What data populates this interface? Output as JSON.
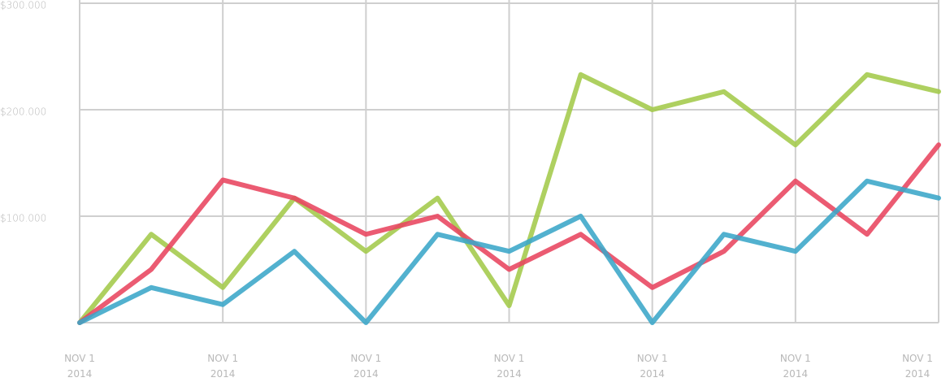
{
  "chart_data": {
    "type": "line",
    "categories": [
      "NOV 1\n2014",
      null,
      "NOV 1\n2014",
      null,
      "NOV 1\n2014",
      null,
      "NOV 1\n2014",
      null,
      "NOV 1\n2014",
      null,
      "NOV 1\n2014",
      null,
      "NOV 1\n2014"
    ],
    "series": [
      {
        "color": "#a3c94a",
        "values": [
          0,
          83000,
          33000,
          117000,
          67000,
          117000,
          16000,
          233000,
          200000,
          217000,
          167000,
          233000,
          217000
        ]
      },
      {
        "color": "#e8445f",
        "values": [
          0,
          50000,
          134000,
          117000,
          83000,
          100000,
          50000,
          83000,
          33000,
          67000,
          133000,
          83000,
          167000
        ]
      },
      {
        "color": "#3aa6c8",
        "values": [
          0,
          33000,
          17000,
          67000,
          0,
          83000,
          67000,
          100000,
          0,
          83000,
          67000,
          133000,
          117000
        ]
      }
    ],
    "ylim": [
      0,
      300000
    ],
    "yticks": [
      {
        "value": 100000,
        "label": "$100.000"
      },
      {
        "value": 200000,
        "label": "$200.000"
      },
      {
        "value": 300000,
        "label": "$300.000"
      }
    ],
    "grid": true
  }
}
